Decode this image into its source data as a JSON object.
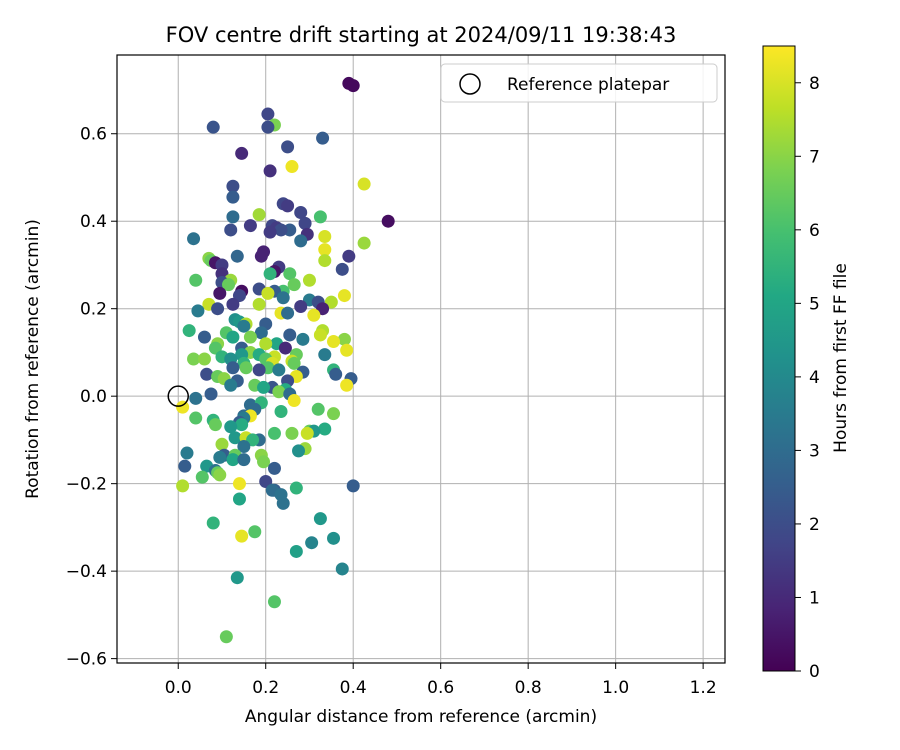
{
  "chart_data": {
    "type": "scatter",
    "title": "FOV centre drift starting at 2024/09/11 19:38:43",
    "xlabel": "Angular distance from reference (arcmin)",
    "ylabel": "Rotation from reference (arcmin)",
    "xlim": [
      -0.14,
      1.25
    ],
    "ylim": [
      -0.61,
      0.78
    ],
    "xticks": [
      "0.0",
      "0.2",
      "0.4",
      "0.6",
      "0.8",
      "1.0",
      "1.2"
    ],
    "yticks": [
      "−0.6",
      "−0.4",
      "−0.2",
      "0.0",
      "0.2",
      "0.4",
      "0.6"
    ],
    "grid": true,
    "legend": {
      "position": "top-right",
      "entries": [
        "Reference platepar"
      ]
    },
    "reference_point": {
      "x": 0.0,
      "y": 0.0
    },
    "colorbar": {
      "label": "Hours from first FF file",
      "range": [
        0,
        8.5
      ],
      "ticks": [
        "0",
        "1",
        "2",
        "3",
        "4",
        "5",
        "6",
        "7",
        "8"
      ],
      "colormap": "viridis"
    },
    "points": [
      {
        "x": 0.39,
        "y": 0.715,
        "h": 0.2
      },
      {
        "x": 0.4,
        "y": 0.71,
        "h": 0.2
      },
      {
        "x": 0.205,
        "y": 0.645,
        "h": 1.8
      },
      {
        "x": 0.08,
        "y": 0.615,
        "h": 2.2
      },
      {
        "x": 0.22,
        "y": 0.62,
        "h": 6.8
      },
      {
        "x": 0.205,
        "y": 0.615,
        "h": 2.0
      },
      {
        "x": 0.33,
        "y": 0.59,
        "h": 2.5
      },
      {
        "x": 0.25,
        "y": 0.57,
        "h": 2.0
      },
      {
        "x": 0.145,
        "y": 0.555,
        "h": 1.0
      },
      {
        "x": 0.26,
        "y": 0.525,
        "h": 8.3
      },
      {
        "x": 0.21,
        "y": 0.515,
        "h": 1.2
      },
      {
        "x": 0.425,
        "y": 0.485,
        "h": 8.0
      },
      {
        "x": 0.125,
        "y": 0.48,
        "h": 2.0
      },
      {
        "x": 0.125,
        "y": 0.455,
        "h": 2.5
      },
      {
        "x": 0.24,
        "y": 0.44,
        "h": 1.8
      },
      {
        "x": 0.25,
        "y": 0.435,
        "h": 1.5
      },
      {
        "x": 0.28,
        "y": 0.42,
        "h": 1.8
      },
      {
        "x": 0.185,
        "y": 0.415,
        "h": 7.3
      },
      {
        "x": 0.325,
        "y": 0.41,
        "h": 6.0
      },
      {
        "x": 0.125,
        "y": 0.41,
        "h": 3.0
      },
      {
        "x": 0.48,
        "y": 0.4,
        "h": 0.3
      },
      {
        "x": 0.29,
        "y": 0.395,
        "h": 1.8
      },
      {
        "x": 0.165,
        "y": 0.39,
        "h": 1.5
      },
      {
        "x": 0.215,
        "y": 0.39,
        "h": 1.8
      },
      {
        "x": 0.225,
        "y": 0.385,
        "h": 1.5
      },
      {
        "x": 0.255,
        "y": 0.38,
        "h": 2.5
      },
      {
        "x": 0.235,
        "y": 0.38,
        "h": 2.0
      },
      {
        "x": 0.12,
        "y": 0.38,
        "h": 2.0
      },
      {
        "x": 0.295,
        "y": 0.37,
        "h": 1.2
      },
      {
        "x": 0.21,
        "y": 0.375,
        "h": 1.5
      },
      {
        "x": 0.335,
        "y": 0.365,
        "h": 8.0
      },
      {
        "x": 0.035,
        "y": 0.36,
        "h": 3.2
      },
      {
        "x": 0.28,
        "y": 0.355,
        "h": 3.0
      },
      {
        "x": 0.425,
        "y": 0.35,
        "h": 7.2
      },
      {
        "x": 0.335,
        "y": 0.335,
        "h": 8.2
      },
      {
        "x": 0.195,
        "y": 0.33,
        "h": 0.8
      },
      {
        "x": 0.19,
        "y": 0.32,
        "h": 0.8
      },
      {
        "x": 0.135,
        "y": 0.32,
        "h": 2.8
      },
      {
        "x": 0.39,
        "y": 0.32,
        "h": 1.5
      },
      {
        "x": 0.07,
        "y": 0.315,
        "h": 7.0
      },
      {
        "x": 0.075,
        "y": 0.31,
        "h": 6.5
      },
      {
        "x": 0.335,
        "y": 0.31,
        "h": 7.5
      },
      {
        "x": 0.085,
        "y": 0.305,
        "h": 0.5
      },
      {
        "x": 0.1,
        "y": 0.3,
        "h": 1.5
      },
      {
        "x": 0.23,
        "y": 0.295,
        "h": 1.5
      },
      {
        "x": 0.375,
        "y": 0.29,
        "h": 2.0
      },
      {
        "x": 0.22,
        "y": 0.285,
        "h": 0.5
      },
      {
        "x": 0.1,
        "y": 0.28,
        "h": 1.2
      },
      {
        "x": 0.21,
        "y": 0.28,
        "h": 5.5
      },
      {
        "x": 0.255,
        "y": 0.28,
        "h": 6.2
      },
      {
        "x": 0.12,
        "y": 0.265,
        "h": 7.2
      },
      {
        "x": 0.3,
        "y": 0.265,
        "h": 7.5
      },
      {
        "x": 0.04,
        "y": 0.265,
        "h": 6.2
      },
      {
        "x": 0.1,
        "y": 0.26,
        "h": 2.0
      },
      {
        "x": 0.115,
        "y": 0.255,
        "h": 6.5
      },
      {
        "x": 0.265,
        "y": 0.255,
        "h": 6.5
      },
      {
        "x": 0.185,
        "y": 0.245,
        "h": 2.0
      },
      {
        "x": 0.24,
        "y": 0.24,
        "h": 6.0
      },
      {
        "x": 0.145,
        "y": 0.24,
        "h": 0.3
      },
      {
        "x": 0.22,
        "y": 0.24,
        "h": 2.5
      },
      {
        "x": 0.095,
        "y": 0.235,
        "h": 0.5
      },
      {
        "x": 0.38,
        "y": 0.23,
        "h": 8.2
      },
      {
        "x": 0.205,
        "y": 0.235,
        "h": 7.8
      },
      {
        "x": 0.14,
        "y": 0.23,
        "h": 1.8
      },
      {
        "x": 0.24,
        "y": 0.225,
        "h": 3.2
      },
      {
        "x": 0.3,
        "y": 0.22,
        "h": 3.5
      },
      {
        "x": 0.32,
        "y": 0.215,
        "h": 2.0
      },
      {
        "x": 0.35,
        "y": 0.215,
        "h": 7.5
      },
      {
        "x": 0.07,
        "y": 0.21,
        "h": 7.8
      },
      {
        "x": 0.185,
        "y": 0.21,
        "h": 7.5
      },
      {
        "x": 0.125,
        "y": 0.21,
        "h": 1.5
      },
      {
        "x": 0.28,
        "y": 0.205,
        "h": 1.5
      },
      {
        "x": 0.33,
        "y": 0.2,
        "h": 0.8
      },
      {
        "x": 0.09,
        "y": 0.2,
        "h": 2.0
      },
      {
        "x": 0.045,
        "y": 0.195,
        "h": 3.5
      },
      {
        "x": 0.235,
        "y": 0.19,
        "h": 8.2
      },
      {
        "x": 0.25,
        "y": 0.19,
        "h": 3.0
      },
      {
        "x": 0.31,
        "y": 0.185,
        "h": 8.2
      },
      {
        "x": 0.13,
        "y": 0.175,
        "h": 4.2
      },
      {
        "x": 0.14,
        "y": 0.17,
        "h": 4.5
      },
      {
        "x": 0.155,
        "y": 0.165,
        "h": 7.5
      },
      {
        "x": 0.2,
        "y": 0.165,
        "h": 2.5
      },
      {
        "x": 0.15,
        "y": 0.16,
        "h": 3.5
      },
      {
        "x": 0.025,
        "y": 0.15,
        "h": 5.5
      },
      {
        "x": 0.33,
        "y": 0.15,
        "h": 7.5
      },
      {
        "x": 0.11,
        "y": 0.145,
        "h": 6.2
      },
      {
        "x": 0.19,
        "y": 0.145,
        "h": 3.0
      },
      {
        "x": 0.255,
        "y": 0.14,
        "h": 2.5
      },
      {
        "x": 0.325,
        "y": 0.14,
        "h": 7.8
      },
      {
        "x": 0.06,
        "y": 0.135,
        "h": 2.5
      },
      {
        "x": 0.125,
        "y": 0.135,
        "h": 5.0
      },
      {
        "x": 0.165,
        "y": 0.135,
        "h": 6.8
      },
      {
        "x": 0.285,
        "y": 0.13,
        "h": 3.5
      },
      {
        "x": 0.38,
        "y": 0.13,
        "h": 7.0
      },
      {
        "x": 0.355,
        "y": 0.125,
        "h": 8.2
      },
      {
        "x": 0.09,
        "y": 0.12,
        "h": 7.0
      },
      {
        "x": 0.225,
        "y": 0.12,
        "h": 5.0
      },
      {
        "x": 0.2,
        "y": 0.12,
        "h": 7.5
      },
      {
        "x": 0.245,
        "y": 0.11,
        "h": 1.0
      },
      {
        "x": 0.085,
        "y": 0.11,
        "h": 6.2
      },
      {
        "x": 0.145,
        "y": 0.11,
        "h": 2.5
      },
      {
        "x": 0.385,
        "y": 0.105,
        "h": 8.2
      },
      {
        "x": 0.165,
        "y": 0.1,
        "h": 7.0
      },
      {
        "x": 0.145,
        "y": 0.095,
        "h": 4.5
      },
      {
        "x": 0.27,
        "y": 0.095,
        "h": 6.5
      },
      {
        "x": 0.335,
        "y": 0.095,
        "h": 3.5
      },
      {
        "x": 0.185,
        "y": 0.095,
        "h": 5.2
      },
      {
        "x": 0.1,
        "y": 0.09,
        "h": 5.5
      },
      {
        "x": 0.22,
        "y": 0.09,
        "h": 7.8
      },
      {
        "x": 0.035,
        "y": 0.085,
        "h": 6.8
      },
      {
        "x": 0.06,
        "y": 0.085,
        "h": 7.0
      },
      {
        "x": 0.2,
        "y": 0.085,
        "h": 6.2
      },
      {
        "x": 0.12,
        "y": 0.085,
        "h": 4.2
      },
      {
        "x": 0.26,
        "y": 0.08,
        "h": 7.8
      },
      {
        "x": 0.265,
        "y": 0.075,
        "h": 6.5
      },
      {
        "x": 0.15,
        "y": 0.075,
        "h": 5.5
      },
      {
        "x": 0.215,
        "y": 0.075,
        "h": 8.0
      },
      {
        "x": 0.205,
        "y": 0.065,
        "h": 6.2
      },
      {
        "x": 0.155,
        "y": 0.065,
        "h": 6.5
      },
      {
        "x": 0.125,
        "y": 0.065,
        "h": 2.5
      },
      {
        "x": 0.185,
        "y": 0.06,
        "h": 1.8
      },
      {
        "x": 0.23,
        "y": 0.06,
        "h": 3.5
      },
      {
        "x": 0.355,
        "y": 0.06,
        "h": 5.5
      },
      {
        "x": 0.285,
        "y": 0.055,
        "h": 2.5
      },
      {
        "x": 0.36,
        "y": 0.05,
        "h": 2.5
      },
      {
        "x": 0.065,
        "y": 0.05,
        "h": 2.0
      },
      {
        "x": 0.09,
        "y": 0.045,
        "h": 6.5
      },
      {
        "x": 0.27,
        "y": 0.045,
        "h": 8.2
      },
      {
        "x": 0.105,
        "y": 0.04,
        "h": 7.0
      },
      {
        "x": 0.395,
        "y": 0.04,
        "h": 2.5
      },
      {
        "x": 0.135,
        "y": 0.035,
        "h": 2.5
      },
      {
        "x": 0.25,
        "y": 0.035,
        "h": 2.0
      },
      {
        "x": 0.385,
        "y": 0.025,
        "h": 8.3
      },
      {
        "x": 0.12,
        "y": 0.025,
        "h": 3.5
      },
      {
        "x": 0.175,
        "y": 0.025,
        "h": 6.5
      },
      {
        "x": 0.215,
        "y": 0.02,
        "h": 2.2
      },
      {
        "x": 0.195,
        "y": 0.02,
        "h": 5.0
      },
      {
        "x": 0.245,
        "y": 0.015,
        "h": 5.2
      },
      {
        "x": 0.23,
        "y": 0.01,
        "h": 6.8
      },
      {
        "x": 0.255,
        "y": 0.005,
        "h": 3.0
      },
      {
        "x": 0.075,
        "y": 0.005,
        "h": 2.5
      },
      {
        "x": 0.04,
        "y": -0.005,
        "h": 3.2
      },
      {
        "x": 0.265,
        "y": -0.01,
        "h": 8.3
      },
      {
        "x": 0.01,
        "y": -0.025,
        "h": 8.3
      },
      {
        "x": 0.165,
        "y": -0.02,
        "h": 3.0
      },
      {
        "x": 0.19,
        "y": -0.015,
        "h": 5.5
      },
      {
        "x": 0.175,
        "y": -0.03,
        "h": 3.0
      },
      {
        "x": 0.32,
        "y": -0.03,
        "h": 6.2
      },
      {
        "x": 0.235,
        "y": -0.035,
        "h": 5.5
      },
      {
        "x": 0.15,
        "y": -0.045,
        "h": 3.0
      },
      {
        "x": 0.165,
        "y": -0.045,
        "h": 8.3
      },
      {
        "x": 0.355,
        "y": -0.04,
        "h": 6.8
      },
      {
        "x": 0.04,
        "y": -0.05,
        "h": 6.2
      },
      {
        "x": 0.15,
        "y": -0.05,
        "h": 3.5
      },
      {
        "x": 0.08,
        "y": -0.055,
        "h": 5.5
      },
      {
        "x": 0.14,
        "y": -0.06,
        "h": 2.5
      },
      {
        "x": 0.085,
        "y": -0.065,
        "h": 6.5
      },
      {
        "x": 0.145,
        "y": -0.065,
        "h": 5.2
      },
      {
        "x": 0.12,
        "y": -0.07,
        "h": 4.5
      },
      {
        "x": 0.335,
        "y": -0.075,
        "h": 5.2
      },
      {
        "x": 0.3,
        "y": -0.08,
        "h": 6.5
      },
      {
        "x": 0.31,
        "y": -0.08,
        "h": 4.5
      },
      {
        "x": 0.22,
        "y": -0.085,
        "h": 6.0
      },
      {
        "x": 0.26,
        "y": -0.085,
        "h": 6.8
      },
      {
        "x": 0.295,
        "y": -0.085,
        "h": 7.8
      },
      {
        "x": 0.13,
        "y": -0.095,
        "h": 4.5
      },
      {
        "x": 0.155,
        "y": -0.095,
        "h": 7.8
      },
      {
        "x": 0.185,
        "y": -0.1,
        "h": 3.0
      },
      {
        "x": 0.17,
        "y": -0.1,
        "h": 5.5
      },
      {
        "x": 0.1,
        "y": -0.11,
        "h": 7.2
      },
      {
        "x": 0.15,
        "y": -0.115,
        "h": 3.2
      },
      {
        "x": 0.29,
        "y": -0.12,
        "h": 7.2
      },
      {
        "x": 0.275,
        "y": -0.125,
        "h": 4.2
      },
      {
        "x": 0.02,
        "y": -0.13,
        "h": 3.5
      },
      {
        "x": 0.105,
        "y": -0.135,
        "h": 2.5
      },
      {
        "x": 0.13,
        "y": -0.135,
        "h": 6.5
      },
      {
        "x": 0.19,
        "y": -0.135,
        "h": 7.0
      },
      {
        "x": 0.125,
        "y": -0.145,
        "h": 5.0
      },
      {
        "x": 0.095,
        "y": -0.14,
        "h": 3.5
      },
      {
        "x": 0.15,
        "y": -0.145,
        "h": 3.0
      },
      {
        "x": 0.195,
        "y": -0.15,
        "h": 6.8
      },
      {
        "x": 0.015,
        "y": -0.16,
        "h": 2.5
      },
      {
        "x": 0.065,
        "y": -0.16,
        "h": 4.5
      },
      {
        "x": 0.22,
        "y": -0.165,
        "h": 2.5
      },
      {
        "x": 0.085,
        "y": -0.17,
        "h": 3.2
      },
      {
        "x": 0.09,
        "y": -0.175,
        "h": 6.5
      },
      {
        "x": 0.095,
        "y": -0.18,
        "h": 7.0
      },
      {
        "x": 0.055,
        "y": -0.185,
        "h": 6.2
      },
      {
        "x": 0.2,
        "y": -0.195,
        "h": 1.8
      },
      {
        "x": 0.14,
        "y": -0.2,
        "h": 8.3
      },
      {
        "x": 0.01,
        "y": -0.205,
        "h": 7.5
      },
      {
        "x": 0.4,
        "y": -0.205,
        "h": 2.5
      },
      {
        "x": 0.27,
        "y": -0.21,
        "h": 5.5
      },
      {
        "x": 0.22,
        "y": -0.215,
        "h": 2.5
      },
      {
        "x": 0.215,
        "y": -0.215,
        "h": 3.0
      },
      {
        "x": 0.235,
        "y": -0.225,
        "h": 3.2
      },
      {
        "x": 0.14,
        "y": -0.235,
        "h": 5.0
      },
      {
        "x": 0.24,
        "y": -0.245,
        "h": 3.2
      },
      {
        "x": 0.325,
        "y": -0.28,
        "h": 4.5
      },
      {
        "x": 0.08,
        "y": -0.29,
        "h": 5.5
      },
      {
        "x": 0.175,
        "y": -0.31,
        "h": 6.2
      },
      {
        "x": 0.145,
        "y": -0.32,
        "h": 8.2
      },
      {
        "x": 0.355,
        "y": -0.325,
        "h": 4.2
      },
      {
        "x": 0.305,
        "y": -0.335,
        "h": 3.8
      },
      {
        "x": 0.27,
        "y": -0.355,
        "h": 4.8
      },
      {
        "x": 0.375,
        "y": -0.395,
        "h": 3.8
      },
      {
        "x": 0.135,
        "y": -0.415,
        "h": 4.5
      },
      {
        "x": 0.22,
        "y": -0.47,
        "h": 6.2
      },
      {
        "x": 0.11,
        "y": -0.55,
        "h": 6.5
      }
    ]
  }
}
